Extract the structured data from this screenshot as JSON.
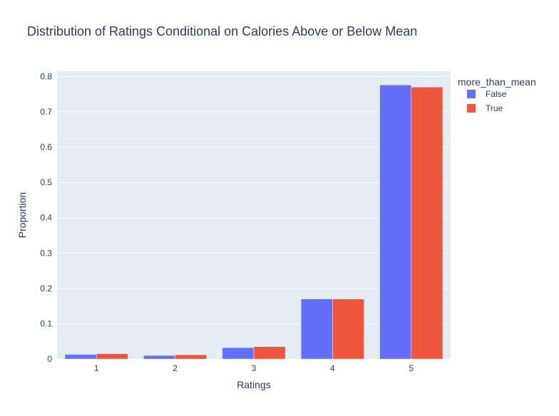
{
  "chart_data": {
    "type": "bar",
    "title": "Distribution of Ratings Conditional on Calories Above or Below Mean",
    "xlabel": "Ratings",
    "ylabel": "Proportion",
    "categories": [
      "1",
      "2",
      "3",
      "4",
      "5"
    ],
    "ylim": [
      0,
      0.815
    ],
    "yticks": [
      0,
      0.1,
      0.2,
      0.3,
      0.4,
      0.5,
      0.6,
      0.7,
      0.8
    ],
    "ytick_labels": [
      "0",
      "0.1",
      "0.2",
      "0.3",
      "0.4",
      "0.5",
      "0.6",
      "0.7",
      "0.8"
    ],
    "grid": true,
    "legend_position": "top-right outside",
    "legend_title": "more_than_mean",
    "series": [
      {
        "name": "False",
        "color": "#636efa",
        "values": [
          0.013,
          0.01,
          0.032,
          0.17,
          0.776
        ]
      },
      {
        "name": "True",
        "color": "#ef553b",
        "values": [
          0.015,
          0.012,
          0.035,
          0.17,
          0.77
        ]
      }
    ],
    "plot_background": "#e5ecf6",
    "gridline_color": "#ffffff"
  }
}
